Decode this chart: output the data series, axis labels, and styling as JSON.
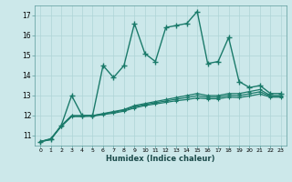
{
  "xlabel": "Humidex (Indice chaleur)",
  "x": [
    0,
    1,
    2,
    3,
    4,
    5,
    6,
    7,
    8,
    9,
    10,
    11,
    12,
    13,
    14,
    15,
    16,
    17,
    18,
    19,
    20,
    21,
    22,
    23
  ],
  "line1": [
    10.7,
    10.8,
    11.5,
    13.0,
    12.0,
    12.0,
    14.5,
    13.9,
    14.5,
    16.6,
    15.1,
    14.7,
    16.4,
    16.5,
    16.6,
    17.2,
    14.6,
    14.7,
    15.9,
    13.7,
    13.4,
    13.5,
    13.1,
    13.1
  ],
  "line2": [
    10.7,
    10.8,
    11.5,
    12.0,
    12.0,
    12.0,
    12.1,
    12.2,
    12.3,
    12.5,
    12.6,
    12.7,
    12.8,
    12.9,
    13.0,
    13.1,
    13.0,
    13.0,
    13.1,
    13.1,
    13.2,
    13.3,
    13.0,
    13.0
  ],
  "line3": [
    10.7,
    10.82,
    11.45,
    11.95,
    11.95,
    11.97,
    12.05,
    12.12,
    12.22,
    12.38,
    12.5,
    12.58,
    12.66,
    12.74,
    12.8,
    12.88,
    12.84,
    12.84,
    12.92,
    12.9,
    12.98,
    13.08,
    12.92,
    12.92
  ],
  "line4": [
    10.7,
    10.85,
    11.48,
    11.98,
    11.98,
    11.99,
    12.08,
    12.17,
    12.27,
    12.44,
    12.55,
    12.64,
    12.73,
    12.82,
    12.9,
    12.99,
    12.92,
    12.92,
    13.01,
    13.0,
    13.09,
    13.19,
    12.96,
    12.96
  ],
  "color": "#1a7a6a",
  "bg_color": "#cce8ea",
  "grid_color": "#afd4d6",
  "ylim": [
    10.5,
    17.5
  ],
  "yticks": [
    11,
    12,
    13,
    14,
    15,
    16,
    17
  ],
  "xlim": [
    -0.5,
    23.5
  ]
}
